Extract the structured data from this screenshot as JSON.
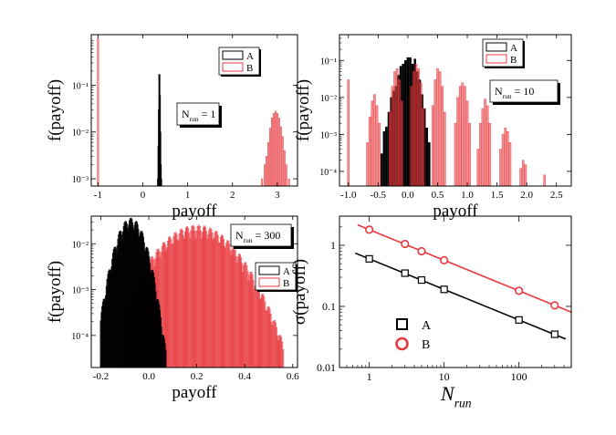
{
  "chart_data": [
    {
      "type": "bar",
      "yscale": "log",
      "xlabel": "payoff",
      "ylabel": "f(payoff)",
      "xlim": [
        -1.15,
        3.45
      ],
      "ylim": [
        0.0007,
        1.2
      ],
      "xticks": [
        -1,
        0,
        1,
        2,
        3
      ],
      "xtick_labels": [
        "-1",
        "0",
        "1",
        "2",
        "3"
      ],
      "yticks": [
        0.001,
        0.01,
        0.1
      ],
      "ytick_labels": [
        "10⁻³",
        "10⁻²",
        "10⁻¹"
      ],
      "annotation": {
        "main": "N",
        "sub": "run",
        "rest": " = 1"
      },
      "legend": [
        {
          "label": "A",
          "color": "#000000"
        },
        {
          "label": "B",
          "color": "#e8383d"
        }
      ],
      "series": [
        {
          "name": "A",
          "color": "#000000",
          "bins": [
            [
              0.34,
              0.001
            ],
            [
              0.35,
              0.005
            ],
            [
              0.36,
              0.03
            ],
            [
              0.37,
              0.17
            ],
            [
              0.38,
              0.06
            ],
            [
              0.39,
              0.01
            ],
            [
              0.4,
              0.002
            ],
            [
              0.41,
              0.001
            ]
          ]
        },
        {
          "name": "B",
          "color": "#e8383d",
          "bins": [
            [
              -1.0,
              1.0
            ],
            [
              2.66,
              0.001
            ],
            [
              2.72,
              0.002
            ],
            [
              2.76,
              0.003
            ],
            [
              2.8,
              0.006
            ],
            [
              2.84,
              0.012
            ],
            [
              2.88,
              0.02
            ],
            [
              2.92,
              0.025
            ],
            [
              2.96,
              0.028
            ],
            [
              3.0,
              0.025
            ],
            [
              3.04,
              0.02
            ],
            [
              3.08,
              0.013
            ],
            [
              3.12,
              0.008
            ],
            [
              3.16,
              0.004
            ],
            [
              3.2,
              0.002
            ],
            [
              3.26,
              0.001
            ]
          ]
        }
      ]
    },
    {
      "type": "bar",
      "yscale": "log",
      "xlabel": "payoff",
      "ylabel": "f(payoff)",
      "xlim": [
        -1.15,
        2.75
      ],
      "ylim": [
        4e-05,
        0.5
      ],
      "xticks": [
        -1.0,
        -0.5,
        0.0,
        0.5,
        1.0,
        1.5,
        2.0,
        2.5
      ],
      "xtick_labels": [
        "-1.0",
        "-0.5",
        "0.0",
        "0.5",
        "1.0",
        "1.5",
        "2.0",
        "2.5"
      ],
      "yticks": [
        0.0001,
        0.001,
        0.01,
        0.1
      ],
      "ytick_labels": [
        "10⁻⁴",
        "10⁻³",
        "10⁻²",
        "10⁻¹"
      ],
      "annotation": {
        "main": "N",
        "sub": "run",
        "rest": " = 10"
      },
      "legend": [
        {
          "label": "A",
          "color": "#000000"
        },
        {
          "label": "B",
          "color": "#e8383d"
        }
      ],
      "series": [
        {
          "name": "A",
          "color": "#000000",
          "bins": [
            [
              -0.44,
              0.0003
            ],
            [
              -0.4,
              0.0012
            ],
            [
              -0.36,
              0.0016
            ],
            [
              -0.32,
              0.004
            ],
            [
              -0.28,
              0.01
            ],
            [
              -0.24,
              0.015
            ],
            [
              -0.2,
              0.02
            ],
            [
              -0.16,
              0.04
            ],
            [
              -0.12,
              0.07
            ],
            [
              -0.08,
              0.08
            ],
            [
              -0.04,
              0.1
            ],
            [
              0.0,
              0.12
            ],
            [
              0.04,
              0.12
            ],
            [
              0.08,
              0.08
            ],
            [
              0.12,
              0.11
            ],
            [
              0.16,
              0.05
            ],
            [
              0.2,
              0.03
            ],
            [
              0.24,
              0.012
            ],
            [
              0.28,
              0.005
            ],
            [
              0.32,
              0.0015
            ],
            [
              0.36,
              0.0006
            ]
          ]
        },
        {
          "name": "B",
          "color": "#e8383d",
          "bins": [
            [
              -1.0,
              0.03
            ],
            [
              -0.68,
              0.0006
            ],
            [
              -0.64,
              0.003
            ],
            [
              -0.6,
              0.008
            ],
            [
              -0.56,
              0.012
            ],
            [
              -0.52,
              0.006
            ],
            [
              -0.48,
              0.002
            ],
            [
              -0.3,
              0.004
            ],
            [
              -0.26,
              0.02
            ],
            [
              -0.22,
              0.05
            ],
            [
              -0.18,
              0.06
            ],
            [
              -0.14,
              0.03
            ],
            [
              -0.1,
              0.008
            ],
            [
              0.06,
              0.02
            ],
            [
              0.1,
              0.05
            ],
            [
              0.14,
              0.08
            ],
            [
              0.18,
              0.06
            ],
            [
              0.22,
              0.025
            ],
            [
              0.26,
              0.005
            ],
            [
              0.42,
              0.006
            ],
            [
              0.46,
              0.03
            ],
            [
              0.5,
              0.06
            ],
            [
              0.54,
              0.05
            ],
            [
              0.58,
              0.02
            ],
            [
              0.62,
              0.004
            ],
            [
              0.8,
              0.002
            ],
            [
              0.84,
              0.01
            ],
            [
              0.88,
              0.02
            ],
            [
              0.92,
              0.025
            ],
            [
              0.96,
              0.02
            ],
            [
              1.0,
              0.008
            ],
            [
              1.04,
              0.002
            ],
            [
              1.18,
              0.0004
            ],
            [
              1.22,
              0.002
            ],
            [
              1.26,
              0.005
            ],
            [
              1.3,
              0.009
            ],
            [
              1.34,
              0.006
            ],
            [
              1.38,
              0.002
            ],
            [
              1.56,
              0.0004
            ],
            [
              1.6,
              0.001
            ],
            [
              1.64,
              0.0015
            ],
            [
              1.68,
              0.0012
            ],
            [
              1.72,
              0.0006
            ],
            [
              1.9,
              0.00012
            ],
            [
              1.94,
              0.0002
            ],
            [
              1.98,
              0.00015
            ],
            [
              2.3,
              8e-05
            ]
          ]
        }
      ]
    },
    {
      "type": "bar",
      "yscale": "log",
      "xlabel": "payoff",
      "ylabel": "f(payoff)",
      "xlim": [
        -0.24,
        0.62
      ],
      "ylim": [
        2e-05,
        0.04
      ],
      "xticks": [
        -0.2,
        0.0,
        0.2,
        0.4,
        0.6
      ],
      "xtick_labels": [
        "-0.2",
        "0.0",
        "0.2",
        "0.4",
        "0.6"
      ],
      "yticks": [
        0.0001,
        0.001,
        0.01
      ],
      "ytick_labels": [
        "10⁻⁴",
        "10⁻³",
        "10⁻²"
      ],
      "annotation": {
        "main": "N",
        "sub": "run",
        "rest": " = 300"
      },
      "legend": [
        {
          "label": "A",
          "color": "#000000"
        },
        {
          "label": "B",
          "color": "#e8383d"
        }
      ],
      "series": [
        {
          "name": "B",
          "color": "#e8383d",
          "gaussian": {
            "mean": 0.2,
            "sd": 0.105,
            "peak": 0.019,
            "start": -0.12,
            "end": 0.56,
            "step": 0.004
          }
        },
        {
          "name": "A",
          "color": "#000000",
          "gaussian": {
            "mean": -0.075,
            "sd": 0.04,
            "peak": 0.027,
            "start": -0.2,
            "end": 0.07,
            "step": 0.003
          }
        }
      ]
    },
    {
      "type": "scatter",
      "xscale": "log",
      "yscale": "log",
      "xlabel": {
        "main": "N",
        "sub": "run"
      },
      "ylabel": "σ(payoff)",
      "xlim": [
        0.4,
        500
      ],
      "ylim": [
        0.01,
        3
      ],
      "xticks": [
        1,
        10,
        100
      ],
      "xtick_labels": [
        "1",
        "10",
        "100"
      ],
      "yticks": [
        0.01,
        0.1,
        1
      ],
      "ytick_labels": [
        "0.01",
        "0.1",
        "1"
      ],
      "legend_position": "bottom-left",
      "series": [
        {
          "name": "A",
          "marker": "square",
          "color": "#000000",
          "x": [
            1,
            3,
            5,
            10,
            100,
            300
          ],
          "y": [
            0.6,
            0.35,
            0.27,
            0.19,
            0.06,
            0.035
          ],
          "fit": {
            "x": [
              0.65,
              420
            ],
            "slope": -0.5,
            "amplitude": 0.6
          }
        },
        {
          "name": "B",
          "marker": "circle",
          "color": "#e8383d",
          "x": [
            1,
            3,
            5,
            10,
            100,
            300
          ],
          "y": [
            1.8,
            1.05,
            0.8,
            0.57,
            0.18,
            0.104
          ],
          "fit": {
            "x": [
              0.7,
              500
            ],
            "slope": -0.5,
            "amplitude": 1.8
          }
        }
      ]
    }
  ]
}
